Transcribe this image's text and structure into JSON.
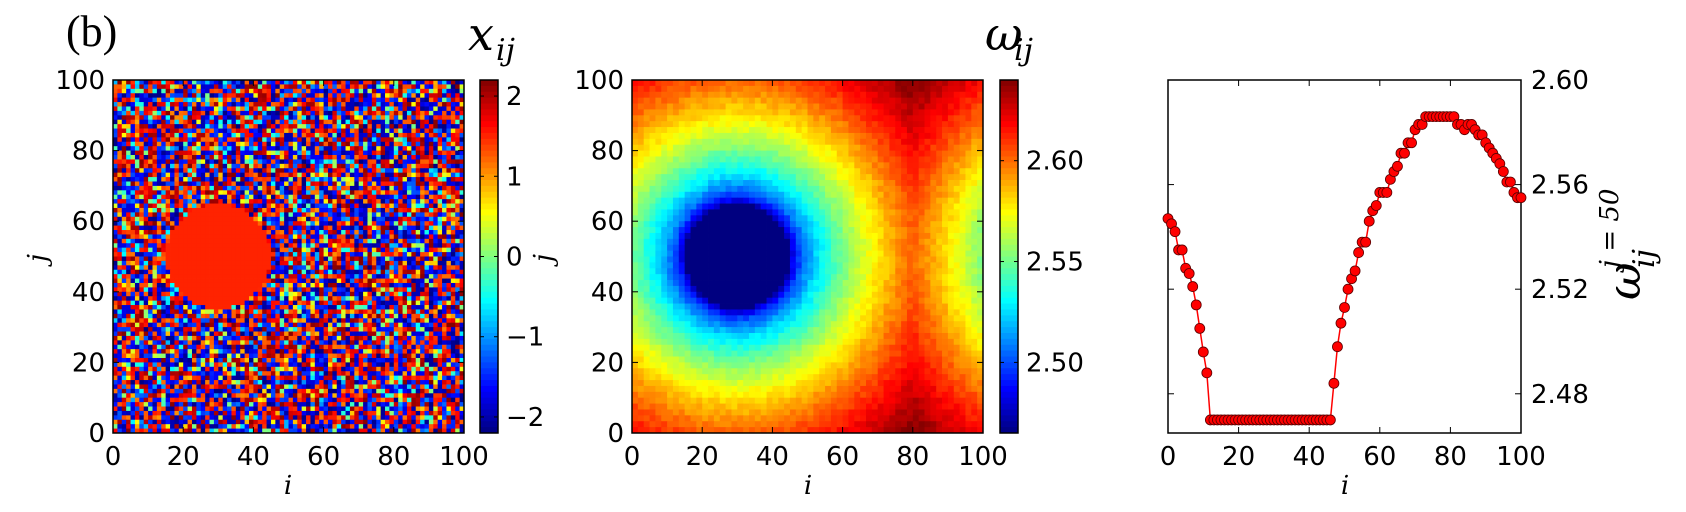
{
  "panel_label": "(b)",
  "chart_data": [
    {
      "type": "heatmap",
      "title": "x_ij",
      "title_display": {
        "base": "x",
        "sub": "ij"
      },
      "xlabel": "i",
      "ylabel": "j",
      "xlim": [
        0,
        100
      ],
      "ylim": [
        0,
        100
      ],
      "xticks": [
        "0",
        "20",
        "40",
        "60",
        "80",
        "100"
      ],
      "yticks": [
        "0",
        "20",
        "40",
        "60",
        "80",
        "100"
      ],
      "colorbar": {
        "label": "j",
        "range": [
          -2.2,
          2.2
        ],
        "ticks": [
          "−2",
          "−1",
          "0",
          "1",
          "2"
        ],
        "colormap": "jet"
      },
      "description_values": {
        "disk_center": [
          30,
          50
        ],
        "disk_radius": 15,
        "disk_value": 1.5,
        "background": "random values in [-2.2, 2.2]"
      }
    },
    {
      "type": "heatmap",
      "title": "ω_ij",
      "title_display": {
        "base": "ω",
        "sub": "ij"
      },
      "xlabel": "i",
      "ylabel": "",
      "xlim": [
        0,
        100
      ],
      "ylim": [
        0,
        100
      ],
      "xticks": [
        "0",
        "20",
        "40",
        "60",
        "80",
        "100"
      ],
      "yticks": [
        "0",
        "20",
        "40",
        "60",
        "80",
        "100"
      ],
      "colorbar": {
        "label": "",
        "range": [
          2.465,
          2.64
        ],
        "ticks": [
          "2.50",
          "2.55",
          "2.60"
        ],
        "colormap": "jet"
      },
      "description_values": {
        "disk_center": [
          30,
          50
        ],
        "disk_radius": 15,
        "disk_value": 2.465,
        "max_value": 2.64
      }
    },
    {
      "type": "line",
      "title": "",
      "xlabel": "i",
      "ylabel": "ω_ij^{j=50}",
      "ylabel_display": {
        "base": "ω",
        "sub": "ij",
        "sup": "j = 50"
      },
      "xlim": [
        0,
        100
      ],
      "ylim": [
        2.465,
        2.6
      ],
      "xticks": [
        "0",
        "20",
        "40",
        "60",
        "80",
        "100"
      ],
      "yticks": [
        "2.48",
        "2.52",
        "2.56",
        "2.60"
      ],
      "series": [
        {
          "color": "#ff0000",
          "marker": "circle",
          "x": [
            0,
            1,
            2,
            3,
            4,
            5,
            6,
            7,
            8,
            9,
            10,
            11,
            12,
            13,
            14,
            15,
            16,
            17,
            18,
            19,
            20,
            21,
            22,
            23,
            24,
            25,
            26,
            27,
            28,
            29,
            30,
            31,
            32,
            33,
            34,
            35,
            36,
            37,
            38,
            39,
            40,
            41,
            42,
            43,
            44,
            45,
            46,
            47,
            48,
            49,
            50,
            51,
            52,
            53,
            54,
            55,
            56,
            57,
            58,
            59,
            60,
            61,
            62,
            63,
            64,
            65,
            66,
            67,
            68,
            69,
            70,
            71,
            72,
            73,
            74,
            75,
            76,
            77,
            78,
            79,
            80,
            81,
            82,
            83,
            84,
            85,
            86,
            87,
            88,
            89,
            90,
            91,
            92,
            93,
            94,
            95,
            96,
            97,
            98,
            99,
            100
          ],
          "y": [
            2.547,
            2.545,
            2.542,
            2.535,
            2.535,
            2.528,
            2.526,
            2.521,
            2.514,
            2.505,
            2.496,
            2.488,
            2.47,
            2.47,
            2.47,
            2.47,
            2.47,
            2.47,
            2.47,
            2.47,
            2.47,
            2.47,
            2.47,
            2.47,
            2.47,
            2.47,
            2.47,
            2.47,
            2.47,
            2.47,
            2.47,
            2.47,
            2.47,
            2.47,
            2.47,
            2.47,
            2.47,
            2.47,
            2.47,
            2.47,
            2.47,
            2.47,
            2.47,
            2.47,
            2.47,
            2.47,
            2.47,
            2.484,
            2.498,
            2.507,
            2.513,
            2.52,
            2.524,
            2.527,
            2.534,
            2.538,
            2.538,
            2.546,
            2.55,
            2.552,
            2.557,
            2.557,
            2.557,
            2.562,
            2.565,
            2.567,
            2.572,
            2.572,
            2.576,
            2.576,
            2.581,
            2.583,
            2.583,
            2.586,
            2.586,
            2.586,
            2.586,
            2.586,
            2.586,
            2.586,
            2.586,
            2.586,
            2.583,
            2.583,
            2.581,
            2.583,
            2.583,
            2.581,
            2.579,
            2.579,
            2.576,
            2.574,
            2.572,
            2.57,
            2.568,
            2.565,
            2.561,
            2.561,
            2.557,
            2.555,
            2.555
          ]
        }
      ]
    }
  ]
}
